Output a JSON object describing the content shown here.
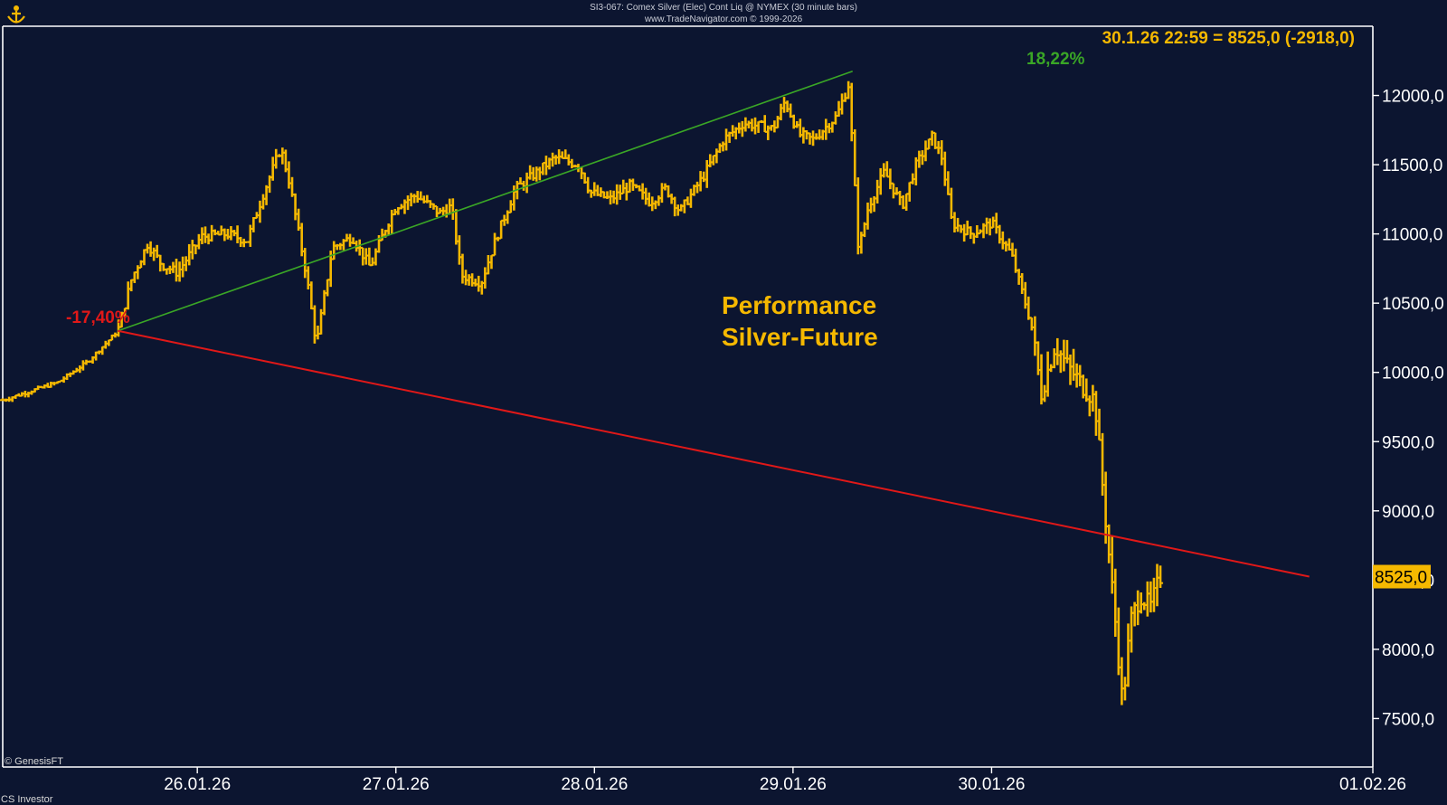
{
  "header": {
    "line1": "SI3-067: Comex Silver (Elec) Cont Liq @ NYMEX (30 minute bars)",
    "line2": "www.TradeNavigator.com © 1999-2026"
  },
  "footer": {
    "watermark": "© GenesisFT",
    "credit": "CS Investor"
  },
  "colors": {
    "background": "#0c1530",
    "bars": "#f5b800",
    "up_line": "#3aa626",
    "down_line": "#e01818",
    "frame": "#ffffff"
  },
  "chart_data": {
    "type": "ohlc-bar",
    "title": "Performance Silver-Future",
    "title_lines": [
      "Performance",
      "Silver-Future"
    ],
    "info_label": "30.1.26 22:59 = 8525,0 (-2918,0)",
    "last_price": "8525,0",
    "ylim": [
      7150,
      12500
    ],
    "y_ticks": [
      7500,
      8000,
      8500,
      9000,
      9500,
      10000,
      10500,
      11000,
      11500,
      12000
    ],
    "y_tick_labels": [
      "7500,0",
      "8000,0",
      "8500,0",
      "9000,0",
      "9500,0",
      "10000,0",
      "10500,0",
      "11000,0",
      "11500,0",
      "12000,0"
    ],
    "x_ticks": [
      "26.01.26",
      "27.01.26",
      "28.01.26",
      "29.01.26",
      "30.01.26",
      "01.02.26"
    ],
    "x_range_days": [
      25.02,
      31.92
    ],
    "annotations": [
      {
        "label": "18,22%",
        "color": "#3aa626",
        "from": {
          "t": 25.6,
          "price": 10300
        },
        "to": {
          "t": 29.3,
          "price": 12175
        }
      },
      {
        "label": "-17,40%",
        "color": "#e01818",
        "from": {
          "t": 25.6,
          "price": 10300
        },
        "to": {
          "t": 31.6,
          "price": 8525
        }
      }
    ],
    "price_path": [
      [
        25.02,
        9800
      ],
      [
        25.15,
        9860
      ],
      [
        25.3,
        9930
      ],
      [
        25.45,
        10080
      ],
      [
        25.6,
        10300
      ],
      [
        25.67,
        10680
      ],
      [
        25.75,
        10930
      ],
      [
        25.82,
        10780
      ],
      [
        25.9,
        10720
      ],
      [
        26.02,
        10980
      ],
      [
        26.15,
        11000
      ],
      [
        26.25,
        10950
      ],
      [
        26.33,
        11280
      ],
      [
        26.42,
        11620
      ],
      [
        26.46,
        11400
      ],
      [
        26.55,
        10700
      ],
      [
        26.6,
        10200
      ],
      [
        26.68,
        10900
      ],
      [
        26.78,
        10980
      ],
      [
        26.87,
        10760
      ],
      [
        26.95,
        11050
      ],
      [
        27.0,
        11200
      ],
      [
        27.1,
        11280
      ],
      [
        27.22,
        11150
      ],
      [
        27.28,
        11200
      ],
      [
        27.33,
        10700
      ],
      [
        27.43,
        10650
      ],
      [
        27.5,
        10950
      ],
      [
        27.6,
        11320
      ],
      [
        27.67,
        11400
      ],
      [
        27.8,
        11550
      ],
      [
        27.92,
        11500
      ],
      [
        27.98,
        11300
      ],
      [
        28.08,
        11250
      ],
      [
        28.18,
        11350
      ],
      [
        28.28,
        11230
      ],
      [
        28.36,
        11330
      ],
      [
        28.43,
        11160
      ],
      [
        28.55,
        11420
      ],
      [
        28.65,
        11680
      ],
      [
        28.75,
        11800
      ],
      [
        28.9,
        11760
      ],
      [
        28.96,
        11960
      ],
      [
        29.03,
        11720
      ],
      [
        29.1,
        11680
      ],
      [
        29.22,
        11850
      ],
      [
        29.28,
        12080
      ],
      [
        29.33,
        10880
      ],
      [
        29.38,
        11200
      ],
      [
        29.46,
        11450
      ],
      [
        29.55,
        11200
      ],
      [
        29.62,
        11500
      ],
      [
        29.7,
        11700
      ],
      [
        29.75,
        11550
      ],
      [
        29.8,
        11080
      ],
      [
        29.9,
        11000
      ],
      [
        30.0,
        11080
      ],
      [
        30.1,
        10850
      ],
      [
        30.2,
        10350
      ],
      [
        30.25,
        9850
      ],
      [
        30.32,
        10200
      ],
      [
        30.38,
        10050
      ],
      [
        30.45,
        9920
      ],
      [
        30.52,
        9800
      ],
      [
        30.58,
        8850
      ],
      [
        30.63,
        8100
      ],
      [
        30.66,
        7600
      ],
      [
        30.7,
        8200
      ],
      [
        30.75,
        8400
      ],
      [
        30.8,
        8300
      ],
      [
        30.85,
        8525
      ]
    ]
  }
}
